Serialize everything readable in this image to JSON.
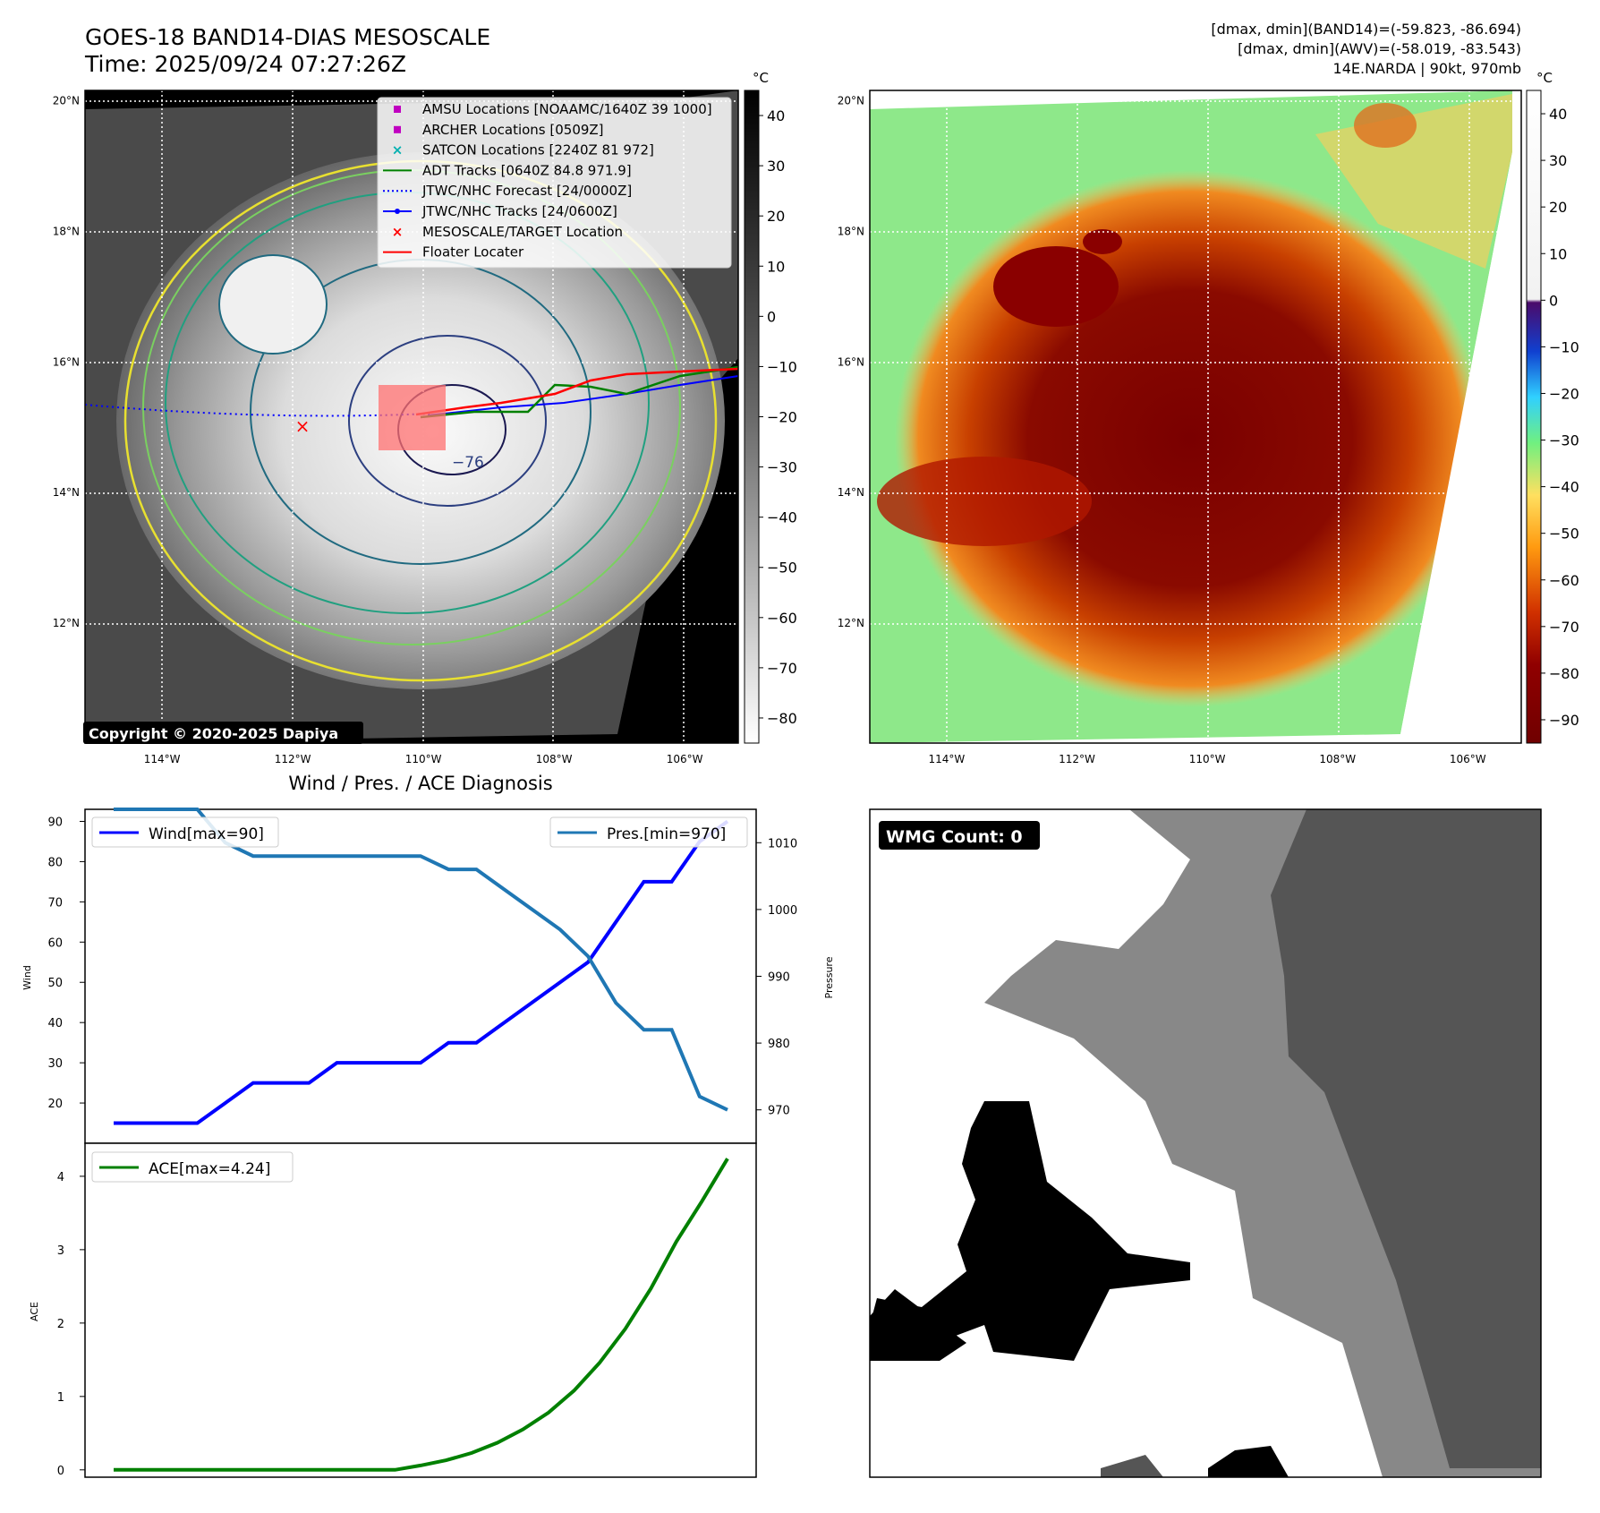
{
  "header": {
    "title_line1": "GOES-18 BAND14-DIAS MESOSCALE",
    "title_line2": "Time: 2025/09/24 07:27:26Z",
    "info_line1": "[dmax, dmin](BAND14)=(-59.823, -86.694)",
    "info_line2": "[dmax, dmin](AWV)=(-58.019, -83.543)",
    "info_line3": "14E.NARDA | 90kt, 970mb"
  },
  "map_axes": {
    "lon_ticks": [
      "114°W",
      "112°W",
      "110°W",
      "108°W",
      "106°W"
    ],
    "lat_ticks": [
      "20°N",
      "18°N",
      "16°N",
      "14°N",
      "12°N"
    ]
  },
  "ir_panel": {
    "copyright": "Copyright © 2020-2025 Dapiya",
    "contour_label": "−76",
    "colorbar_unit": "°C",
    "colorbar_ticks": [
      "40",
      "30",
      "20",
      "10",
      "0",
      "−10",
      "−20",
      "−30",
      "−40",
      "−50",
      "−60",
      "−70",
      "−80"
    ],
    "legend": [
      {
        "label": "AMSU Locations [NOAAMC/1640Z 39 1000]",
        "marker": "square",
        "color": "#c000c0"
      },
      {
        "label": "ARCHER Locations [0509Z]",
        "marker": "square",
        "color": "#c000c0"
      },
      {
        "label": "SATCON Locations [2240Z 81 972]",
        "marker": "x",
        "color": "#00b0b0"
      },
      {
        "label": "ADT Tracks [0640Z 84.8 971.9]",
        "marker": "line",
        "color": "#008000"
      },
      {
        "label": "JTWC/NHC Forecast [24/0000Z]",
        "marker": "dotted",
        "color": "#0000ff"
      },
      {
        "label": "JTWC/NHC Tracks [24/0600Z]",
        "marker": "line-dot",
        "color": "#0000ff"
      },
      {
        "label": "MESOSCALE/TARGET Location",
        "marker": "x",
        "color": "#ff0000"
      },
      {
        "label": "Floater Locater",
        "marker": "line",
        "color": "#ff0000"
      }
    ]
  },
  "awv_panel": {
    "colorbar_unit": "°C",
    "colorbar_ticks": [
      "40",
      "30",
      "20",
      "10",
      "0",
      "−10",
      "−20",
      "−30",
      "−40",
      "−50",
      "−60",
      "−70",
      "−80",
      "−90"
    ]
  },
  "diagnosis": {
    "title": "Wind / Pres. / ACE Diagnosis",
    "wind_axis_label": "Wind",
    "pressure_axis_label": "Pressure",
    "ace_axis_label": "ACE",
    "wind_legend": "Wind[max=90]",
    "pres_legend": "Pres.[min=970]",
    "ace_legend": "ACE[max=4.24]",
    "wind_ticks": [
      "90",
      "80",
      "70",
      "60",
      "50",
      "40",
      "30",
      "20"
    ],
    "pres_ticks": [
      "1010",
      "1000",
      "990",
      "980",
      "970"
    ],
    "ace_ticks": [
      "4",
      "3",
      "2",
      "1",
      "0"
    ]
  },
  "wmg_panel": {
    "badge": "WMG Count: 0"
  },
  "chart_data": [
    {
      "type": "line",
      "title": "Wind / Pres. / ACE Diagnosis",
      "ylabel": "Wind",
      "y2label": "Pressure",
      "ylim": [
        10,
        93
      ],
      "y2lim": [
        965,
        1015
      ],
      "series": [
        {
          "name": "Wind[max=90]",
          "color": "#0000ff",
          "axis": "left",
          "values": [
            15,
            15,
            15,
            15,
            20,
            25,
            25,
            25,
            30,
            30,
            30,
            30,
            35,
            35,
            40,
            45,
            50,
            55,
            65,
            75,
            75,
            85,
            90
          ]
        },
        {
          "name": "Pres.[min=970]",
          "color": "#1f77b4",
          "axis": "right",
          "values": [
            1015,
            1015,
            1015,
            1015,
            1010,
            1008,
            1008,
            1008,
            1008,
            1008,
            1008,
            1008,
            1006,
            1006,
            1003,
            1000,
            997,
            993,
            986,
            982,
            982,
            972,
            970
          ]
        }
      ]
    },
    {
      "type": "line",
      "ylabel": "ACE",
      "ylim": [
        -0.1,
        4.45
      ],
      "series": [
        {
          "name": "ACE[max=4.24]",
          "color": "#008000",
          "values": [
            0,
            0,
            0,
            0,
            0,
            0,
            0,
            0,
            0,
            0,
            0,
            0,
            0.06,
            0.13,
            0.23,
            0.37,
            0.55,
            0.78,
            1.08,
            1.46,
            1.92,
            2.47,
            3.11,
            3.66,
            4.24
          ]
        }
      ]
    }
  ]
}
